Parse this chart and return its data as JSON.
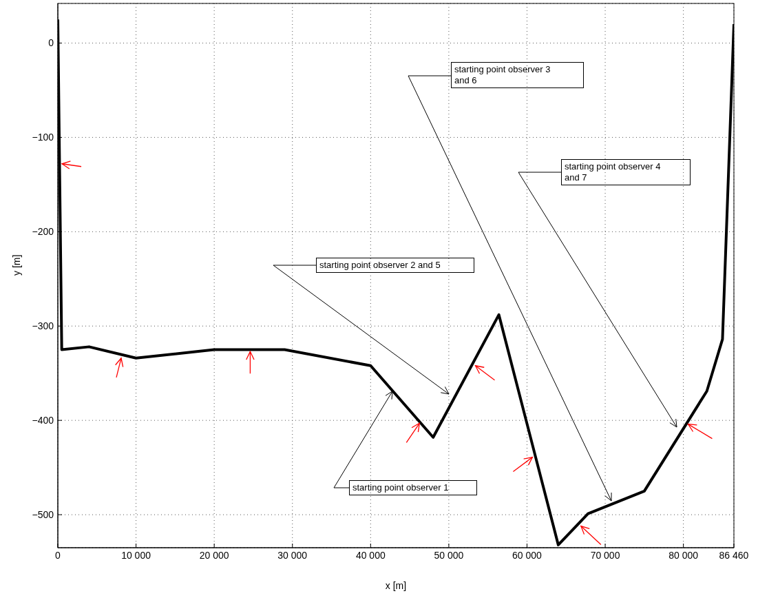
{
  "chart_data": {
    "type": "line",
    "xlabel": "x [m]",
    "ylabel": "y [m]",
    "x": [
      0,
      500,
      4000,
      10000,
      20000,
      29000,
      40000,
      48000,
      56400,
      64000,
      67800,
      75000,
      83000,
      85000,
      86460
    ],
    "series": [
      {
        "color": "#000000",
        "values": [
          25,
          -325,
          -322,
          -334,
          -325,
          -325,
          -342,
          -418,
          -288,
          -532,
          -499,
          -475,
          -369,
          -314,
          20
        ]
      }
    ],
    "xlim": [
      0,
      86460
    ],
    "ylim": [
      -535,
      42
    ],
    "xticks": [
      0,
      {
        "value": 10000,
        "label": "10 000"
      },
      {
        "value": 20000,
        "label": "20 000"
      },
      {
        "value": 30000,
        "label": "30 000"
      },
      {
        "value": 40000,
        "label": "40 000"
      },
      {
        "value": 50000,
        "label": "50 000"
      },
      {
        "value": 60000,
        "label": "60 000"
      },
      {
        "value": 70000,
        "label": "70 000"
      },
      {
        "value": 80000,
        "label": "80 000"
      },
      {
        "value": 86460,
        "label": "86 460"
      }
    ],
    "yticks": [
      {
        "value": -500,
        "label": "−500"
      },
      {
        "value": -400,
        "label": "−400"
      },
      {
        "value": -300,
        "label": "−300"
      },
      {
        "value": -200,
        "label": "−200"
      },
      {
        "value": -100,
        "label": "−100"
      },
      0
    ],
    "grid": true,
    "marker": "none",
    "line_style": "solid",
    "annotations": [
      {
        "text": "starting point observer 1",
        "x": 42800,
        "y": -369
      },
      "starting point observer 2 and 5",
      "starting point observer 3 and 6",
      "starting point observer 4 and 7"
    ]
  }
}
